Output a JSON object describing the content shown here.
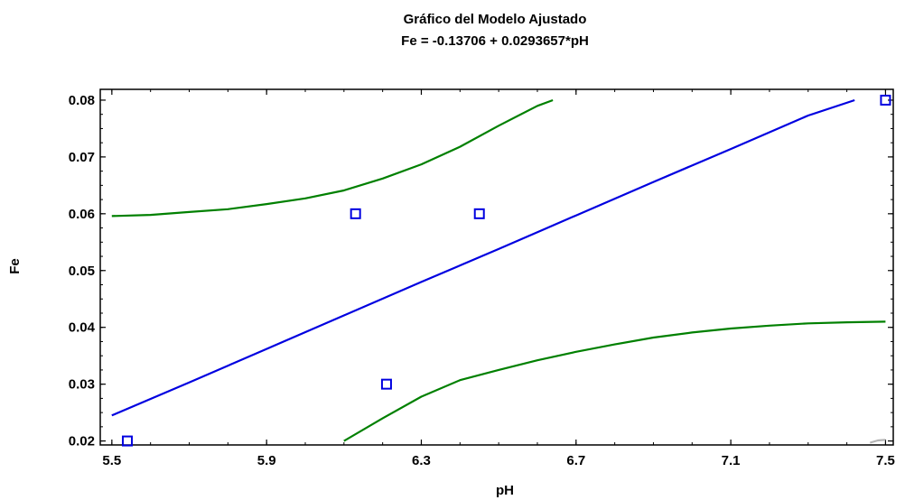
{
  "chart_data": {
    "type": "scatter",
    "title": "Gráfico del Modelo Ajustado",
    "subtitle": "Fe = -0.13706 + 0.0293657*pH",
    "xlabel": "pH",
    "ylabel": "Fe",
    "xlim": [
      5.47,
      7.52
    ],
    "ylim": [
      0.0193,
      0.0819
    ],
    "x_ticks": [
      5.5,
      5.9,
      6.3,
      6.7,
      7.1,
      7.5
    ],
    "x_tick_labels": [
      "5.5",
      "5.9",
      "6.3",
      "6.7",
      "7.1",
      "7.5"
    ],
    "y_ticks": [
      0.02,
      0.03,
      0.04,
      0.05,
      0.06,
      0.07,
      0.08
    ],
    "y_tick_labels": [
      "0.02",
      "0.03",
      "0.04",
      "0.05",
      "0.06",
      "0.07",
      "0.08"
    ],
    "grid": false,
    "colors": {
      "points": "#0000e0",
      "fit": "#0000e0",
      "limits": "#008000",
      "extra": "#b4b4b4",
      "frame": "#000000"
    },
    "points": [
      {
        "x": 5.54,
        "y": 0.02
      },
      {
        "x": 6.13,
        "y": 0.06
      },
      {
        "x": 6.21,
        "y": 0.03
      },
      {
        "x": 6.45,
        "y": 0.06
      },
      {
        "x": 7.5,
        "y": 0.08
      }
    ],
    "series": [
      {
        "type": "line",
        "role": "fit",
        "x": [
          5.5,
          5.7,
          5.9,
          6.1,
          6.3,
          6.5,
          6.7,
          6.9,
          7.1,
          7.3,
          7.42
        ],
        "y": [
          0.0245,
          0.0303,
          0.0362,
          0.0421,
          0.048,
          0.0538,
          0.0597,
          0.0656,
          0.0714,
          0.0773,
          0.08
        ]
      },
      {
        "type": "line",
        "role": "upper-limit",
        "x": [
          5.5,
          5.6,
          5.7,
          5.8,
          5.9,
          6.0,
          6.1,
          6.2,
          6.3,
          6.4,
          6.5,
          6.6,
          6.64
        ],
        "y": [
          0.0596,
          0.0598,
          0.0603,
          0.0608,
          0.0617,
          0.0627,
          0.0641,
          0.0662,
          0.0687,
          0.0718,
          0.0755,
          0.079,
          0.08
        ]
      },
      {
        "type": "line",
        "role": "lower-limit",
        "x": [
          6.1,
          6.2,
          6.3,
          6.4,
          6.5,
          6.6,
          6.7,
          6.8,
          6.9,
          7.0,
          7.1,
          7.2,
          7.3,
          7.4,
          7.5
        ],
        "y": [
          0.02,
          0.024,
          0.0278,
          0.0307,
          0.0325,
          0.0342,
          0.0357,
          0.037,
          0.0382,
          0.0391,
          0.0398,
          0.0403,
          0.0407,
          0.0409,
          0.041
        ]
      },
      {
        "type": "line",
        "role": "extra",
        "x": [
          7.46,
          7.48,
          7.5
        ],
        "y": [
          0.0197,
          0.0201,
          0.0202
        ]
      }
    ]
  }
}
